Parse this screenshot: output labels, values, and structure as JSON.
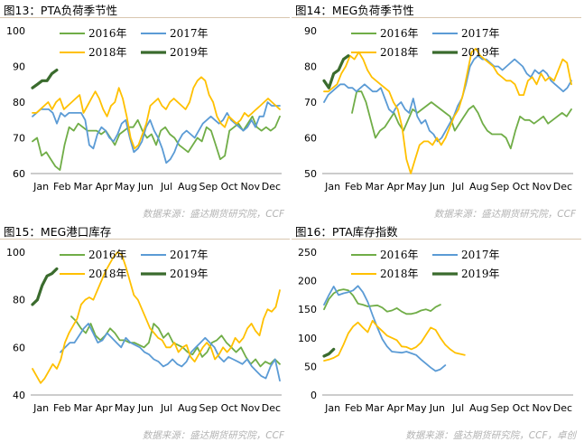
{
  "colors": {
    "y2016": "#70ad47",
    "y2017": "#5b9bd5",
    "y2018": "#ffc000",
    "y2019": "#3a6b2d"
  },
  "panels": [
    {
      "title": "图13：PTA负荷季节性",
      "source": "数据来源：盛达期货研究院，CCF"
    },
    {
      "title": "图14：MEG负荷季节性",
      "source": "数据来源：盛达期货研究院，CCF"
    },
    {
      "title": "图15：MEG港口库存",
      "source": "数据来源：盛达期货研究院，CCF"
    },
    {
      "title": "图16：PTA库存指数",
      "source": "数据来源：盛达期货研究院，CCF，卓创"
    }
  ],
  "chart_data": [
    {
      "type": "line",
      "months": [
        "Jan",
        "Feb",
        "Mar",
        "Apr",
        "May",
        "Jun",
        "Jul",
        "Aug",
        "Sep",
        "Oct",
        "Nov",
        "Dec"
      ],
      "ylim": [
        60,
        100
      ],
      "yticks": [
        60,
        70,
        80,
        90,
        100
      ],
      "legend": [
        "2016年",
        "2017年",
        "2018年",
        "2019年"
      ],
      "series": [
        {
          "name": "2016年",
          "values": [
            69,
            70,
            65,
            66,
            64,
            62,
            61,
            68,
            73,
            72,
            74,
            73,
            72,
            72,
            72,
            71,
            72,
            70,
            68,
            71,
            72,
            73,
            73,
            75,
            72,
            70,
            71,
            68,
            72,
            73,
            71,
            70,
            68,
            67,
            66,
            68,
            70,
            69,
            73,
            72,
            68,
            64,
            65,
            72,
            73,
            74,
            72,
            74,
            76,
            73,
            72,
            73,
            72,
            73,
            76
          ]
        },
        {
          "name": "2017年",
          "values": [
            76,
            77,
            78,
            78,
            78,
            77,
            74,
            77,
            76,
            77,
            77,
            77,
            77,
            75,
            68,
            67,
            71,
            73,
            72,
            70,
            69,
            71,
            74,
            75,
            70,
            66,
            67,
            69,
            73,
            75,
            72,
            70,
            67,
            63,
            64,
            66,
            69,
            71,
            72,
            71,
            70,
            72,
            74,
            75,
            76,
            75,
            74,
            75,
            77,
            75,
            74,
            73,
            72,
            73,
            75,
            73,
            76,
            76,
            80,
            79,
            79,
            79
          ]
        },
        {
          "name": "2018年",
          "values": [
            77,
            77,
            78,
            79,
            80,
            78,
            80,
            81,
            78,
            79,
            80,
            81,
            82,
            77,
            79,
            81,
            83,
            81,
            78,
            76,
            79,
            80,
            84,
            81,
            76,
            70,
            67,
            68,
            71,
            74,
            79,
            80,
            81,
            79,
            78,
            80,
            81,
            80,
            79,
            78,
            80,
            84,
            86,
            87,
            86,
            82,
            80,
            76,
            74,
            73,
            76,
            75,
            74,
            75,
            77,
            76,
            77,
            78,
            79,
            80,
            81,
            80,
            79,
            78
          ]
        },
        {
          "name": "2019年",
          "values": [
            84,
            85,
            86,
            86,
            88,
            89
          ]
        }
      ]
    },
    {
      "type": "line",
      "months": [
        "Jan",
        "Feb",
        "Mar",
        "Apr",
        "May",
        "Jun",
        "Jul",
        "Aug",
        "Sep",
        "Oct",
        "Nov",
        "Dec"
      ],
      "ylim": [
        50,
        90
      ],
      "yticks": [
        50,
        60,
        70,
        80,
        90
      ],
      "legend": [
        "2016年",
        "2017年",
        "2018年",
        "2019年"
      ],
      "series": [
        {
          "name": "2016年",
          "values": [
            null,
            null,
            null,
            null,
            null,
            null,
            67,
            73,
            73,
            70,
            65,
            60,
            62,
            63,
            65,
            67,
            64,
            62,
            65,
            68,
            67,
            68,
            69,
            70,
            69,
            68,
            67,
            66,
            62,
            64,
            66,
            68,
            69,
            67,
            64,
            62,
            61,
            61,
            61,
            60,
            57,
            62,
            66,
            65,
            65,
            64,
            65,
            66,
            64,
            65,
            66,
            67,
            66,
            68
          ]
        },
        {
          "name": "2017年",
          "values": [
            70,
            72,
            73,
            74,
            75,
            75,
            74,
            74,
            73,
            74,
            75,
            74,
            73,
            73,
            74,
            71,
            68,
            67,
            69,
            70,
            68,
            67,
            71,
            66,
            64,
            65,
            62,
            61,
            59,
            60,
            62,
            64,
            66,
            69,
            71,
            75,
            80,
            82,
            83,
            82,
            82,
            81,
            80,
            80,
            79,
            80,
            81,
            82,
            81,
            80,
            78,
            77,
            79,
            78,
            79,
            78,
            76,
            75,
            74,
            73,
            74,
            76
          ]
        },
        {
          "name": "2018年",
          "values": [
            73,
            73,
            74,
            75,
            78,
            80,
            83,
            82,
            84,
            82,
            79,
            77,
            76,
            75,
            74,
            73,
            70,
            68,
            63,
            54,
            50,
            54,
            58,
            59,
            59,
            58,
            60,
            58,
            60,
            63,
            66,
            68,
            72,
            78,
            84,
            85,
            83,
            82,
            81,
            80,
            78,
            77,
            76,
            76,
            75,
            72,
            72,
            76,
            77,
            75,
            78,
            76,
            77,
            76,
            79,
            82,
            81,
            75
          ]
        },
        {
          "name": "2019年",
          "values": [
            76,
            74,
            78,
            79,
            82,
            83
          ]
        }
      ]
    },
    {
      "type": "line",
      "months": [
        "Jan",
        "Feb",
        "Mar",
        "Apr",
        "May",
        "Jun",
        "Jul",
        "Aug",
        "Sep",
        "Oct",
        "Nov",
        "Dec"
      ],
      "ylim": [
        40,
        100
      ],
      "yticks": [
        40,
        60,
        80,
        100
      ],
      "legend": [
        "2016年",
        "2017年",
        "2018年",
        "2019年"
      ],
      "series": [
        {
          "name": "2016年",
          "values": [
            null,
            null,
            null,
            null,
            null,
            null,
            null,
            null,
            73,
            71,
            68,
            66,
            70,
            65,
            63,
            65,
            68,
            66,
            63,
            63,
            62,
            62,
            61,
            60,
            62,
            70,
            68,
            64,
            66,
            62,
            61,
            60,
            58,
            57,
            60,
            56,
            58,
            62,
            63,
            65,
            62,
            60,
            58,
            60,
            56,
            53,
            55,
            52,
            54,
            53,
            55,
            53
          ]
        },
        {
          "name": "2017年",
          "values": [
            null,
            null,
            null,
            null,
            null,
            null,
            58,
            60,
            62,
            62,
            65,
            68,
            70,
            66,
            62,
            63,
            66,
            64,
            62,
            60,
            64,
            62,
            61,
            60,
            58,
            57,
            55,
            54,
            52,
            53,
            55,
            53,
            52,
            54,
            58,
            60,
            62,
            64,
            62,
            60,
            56,
            54,
            56,
            55,
            54,
            53,
            55,
            52,
            50,
            48,
            47,
            52,
            55,
            46
          ]
        },
        {
          "name": "2018年",
          "values": [
            51,
            48,
            45,
            47,
            50,
            53,
            51,
            55,
            62,
            66,
            69,
            72,
            78,
            80,
            81,
            80,
            84,
            88,
            92,
            95,
            98,
            100,
            99,
            94,
            88,
            82,
            80,
            76,
            72,
            68,
            66,
            64,
            63,
            60,
            60,
            62,
            58,
            60,
            61,
            56,
            54,
            57,
            60,
            62,
            60,
            55,
            57,
            60,
            58,
            60,
            64,
            62,
            64,
            68,
            70,
            67,
            65,
            72,
            76,
            75,
            77,
            84
          ]
        },
        {
          "name": "2019年",
          "values": [
            78,
            80,
            86,
            90,
            91,
            93
          ]
        }
      ]
    },
    {
      "type": "line",
      "months": [
        "Jan",
        "Feb",
        "Mar",
        "Apr",
        "May",
        "Jun",
        "Jul",
        "Aug",
        "Sep",
        "Oct",
        "Nov",
        "Dec"
      ],
      "ylim": [
        0,
        250
      ],
      "yticks": [
        0,
        50,
        100,
        150,
        200,
        250
      ],
      "legend": [
        "2016年",
        "2017年",
        "2018年",
        "2019年"
      ],
      "series": [
        {
          "name": "2016年",
          "values": [
            150,
            168,
            178,
            183,
            185,
            183,
            174,
            160,
            158,
            155,
            156,
            157,
            153,
            146,
            148,
            152,
            146,
            142,
            142,
            144,
            148,
            150,
            147,
            154,
            158
          ]
        },
        {
          "name": "2017年",
          "values": [
            158,
            175,
            190,
            175,
            178,
            180,
            183,
            191,
            180,
            163,
            140,
            118,
            98,
            85,
            76,
            75,
            74,
            76,
            73,
            70,
            62,
            55,
            48,
            42,
            45,
            52
          ]
        },
        {
          "name": "2018年",
          "values": [
            60,
            62,
            65,
            70,
            88,
            108,
            120,
            127,
            118,
            110,
            130,
            120,
            112,
            104,
            100,
            96,
            85,
            84,
            80,
            84,
            92,
            105,
            118,
            114,
            100,
            88,
            80,
            74,
            72,
            70
          ]
        },
        {
          "name": "2019年",
          "values": [
            68,
            72,
            80
          ]
        }
      ]
    }
  ]
}
